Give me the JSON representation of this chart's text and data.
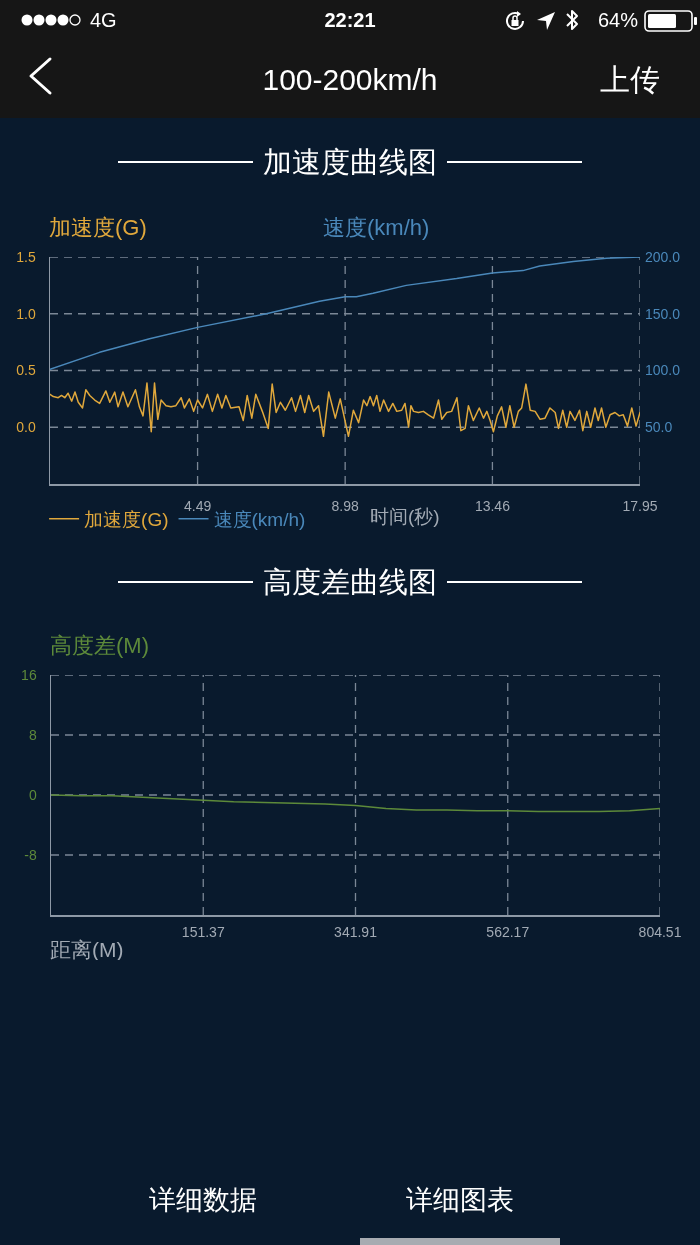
{
  "chart_data": [
    {
      "type": "other",
      "title": "100-200km/h",
      "annotations": [
        "4G",
        "22:21",
        "64%",
        "上传"
      ]
    },
    {
      "type": "line",
      "title": "加速度曲线图",
      "ylabel": "加速度(G)",
      "y2label": "速度(km/h)",
      "xlabel": "时间(秒)",
      "xlim": [
        0,
        17.95
      ],
      "xticks": [
        4.49,
        8.98,
        13.46,
        17.95
      ],
      "ylim": [
        -0.5,
        1.5
      ],
      "yticks": [
        {
          "value": 0,
          "label": "0.0"
        },
        0.5,
        {
          "value": 1,
          "label": "1.0"
        },
        1.5
      ],
      "y2lim": [
        0,
        200
      ],
      "y2ticks": [
        {
          "value": 50,
          "label": "50.0"
        },
        {
          "value": 100,
          "label": "100.0"
        },
        {
          "value": 150,
          "label": "150.0"
        },
        {
          "value": 200,
          "label": "200.0"
        }
      ],
      "grid": true,
      "legend": "bottom",
      "series": [
        {
          "name": "加速度(G)",
          "color": "#e0a83c",
          "x": [
            0,
            0.1,
            0.25,
            0.35,
            0.45,
            0.55,
            0.66,
            0.76,
            0.86,
            0.99,
            1.09,
            1.21,
            1.36,
            1.51,
            1.7,
            1.82,
            1.97,
            2.07,
            2.22,
            2.37,
            2.6,
            2.72,
            2.83,
            2.95,
            3.08,
            3.18,
            3.28,
            3.38,
            3.53,
            3.68,
            3.83,
            3.99,
            4.09,
            4.24,
            4.37,
            4.49,
            4.64,
            4.79,
            4.94,
            5.1,
            5.23,
            5.35,
            5.5,
            5.75,
            5.88,
            6.0,
            6.14,
            6.26,
            6.46,
            6.64,
            6.76,
            6.88,
            7.01,
            7.16,
            7.35,
            7.47,
            7.62,
            7.75,
            7.87,
            8.02,
            8.17,
            8.32,
            8.48,
            8.68,
            8.83,
            9.08,
            9.23,
            9.39,
            9.54,
            9.64,
            9.74,
            9.84,
            9.94,
            10.04,
            10.15,
            10.3,
            10.43,
            10.55,
            10.7,
            10.8,
            10.91,
            10.98,
            11.06,
            11.21,
            11.36,
            11.51,
            11.67,
            11.82,
            11.92,
            12.07,
            12.22,
            12.38,
            12.5,
            12.63,
            12.73,
            12.88,
            13.06,
            13.19,
            13.29,
            13.39,
            13.49,
            13.61,
            13.74,
            13.87,
            13.99,
            14.12,
            14.25,
            14.35,
            14.48,
            14.61,
            14.76,
            14.91,
            15.06,
            15.21,
            15.37,
            15.47,
            15.6,
            15.72,
            15.82,
            15.97,
            16.11,
            16.21,
            16.33,
            16.45,
            16.58,
            16.68,
            16.78,
            16.91,
            17.04,
            17.19,
            17.32,
            17.44,
            17.57,
            17.7,
            17.83,
            17.95
          ],
          "values": [
            0.29,
            0.27,
            0.26,
            0.28,
            0.26,
            0.3,
            0.23,
            0.31,
            0.22,
            0.17,
            0.33,
            0.28,
            0.24,
            0.21,
            0.32,
            0.22,
            0.31,
            0.18,
            0.31,
            0.18,
            0.33,
            0.18,
            0.1,
            0.39,
            -0.04,
            0.39,
            0.07,
            0.24,
            0.19,
            0.18,
            0.19,
            0.26,
            0.17,
            0.25,
            0.14,
            0.24,
            0.17,
            0.29,
            0.14,
            0.29,
            0.17,
            0.28,
            0.17,
            0.18,
            0.06,
            0.28,
            0.08,
            0.29,
            0.14,
            -0.01,
            0.38,
            0.13,
            0.22,
            0.15,
            0.26,
            0.14,
            0.28,
            0.13,
            0.28,
            0.14,
            0.19,
            -0.08,
            0.31,
            0.08,
            0.25,
            -0.08,
            0.15,
            0.04,
            0.24,
            0.19,
            0.27,
            0.19,
            0.28,
            0.14,
            0.24,
            0.14,
            0.21,
            0.14,
            0.15,
            0.21,
            0.0,
            0.19,
            0.14,
            0.13,
            0.14,
            0.11,
            0.08,
            0.24,
            0.07,
            0.13,
            0.14,
            0.26,
            -0.03,
            -0.01,
            0.19,
            0.06,
            0.17,
            0.08,
            0.14,
            0.06,
            -0.04,
            0.1,
            0.18,
            0.0,
            0.19,
            0.0,
            0.14,
            0.17,
            0.38,
            0.15,
            0.14,
            0.07,
            0.08,
            0.17,
            0.13,
            -0.01,
            0.15,
            0.0,
            0.14,
            0.06,
            0.15,
            -0.03,
            0.14,
            0.0,
            0.17,
            0.06,
            0.17,
            0.0,
            0.11,
            0.13,
            0.1,
            0.11,
            0.01,
            0.17,
            0.01,
            0.13
          ]
        },
        {
          "name": "速度(km/h)",
          "color": "#4a88ba",
          "axis": "y2",
          "x": [
            0,
            1.51,
            3.03,
            4.49,
            6.58,
            8.2,
            8.98,
            9.32,
            9.83,
            10.84,
            12.37,
            13.46,
            14.39,
            14.9,
            15.92,
            16.93,
            17.95
          ],
          "values": [
            101,
            116,
            128,
            138,
            150,
            161,
            165,
            165,
            168,
            175,
            181,
            186,
            188,
            192,
            196,
            199,
            200
          ]
        }
      ]
    },
    {
      "type": "line",
      "title": "高度差曲线图",
      "ylabel": "高度差(M)",
      "xlabel": "距离(M)",
      "categories": [
        null,
        null,
        null,
        null,
        null,
        "151.37",
        null,
        null,
        null,
        null,
        "341.91",
        null,
        null,
        null,
        null,
        "562.17",
        null,
        null,
        null,
        null,
        "804.51"
      ],
      "values": [
        0,
        -0.1,
        -0.1,
        -0.3,
        -0.5,
        -0.7,
        -0.9,
        -1,
        -1.1,
        -1.2,
        -1.4,
        -1.8,
        -2,
        -2,
        -2.1,
        -2.1,
        -2.2,
        -2.2,
        -2.2,
        -2.1,
        -1.8
      ],
      "color": "#5d8a3a",
      "ylim": [
        -16,
        16
      ],
      "yticks": [
        -8,
        0,
        8,
        16
      ],
      "grid": true
    },
    {
      "type": "other",
      "annotations": [
        "详细数据",
        "详细图表"
      ]
    }
  ]
}
